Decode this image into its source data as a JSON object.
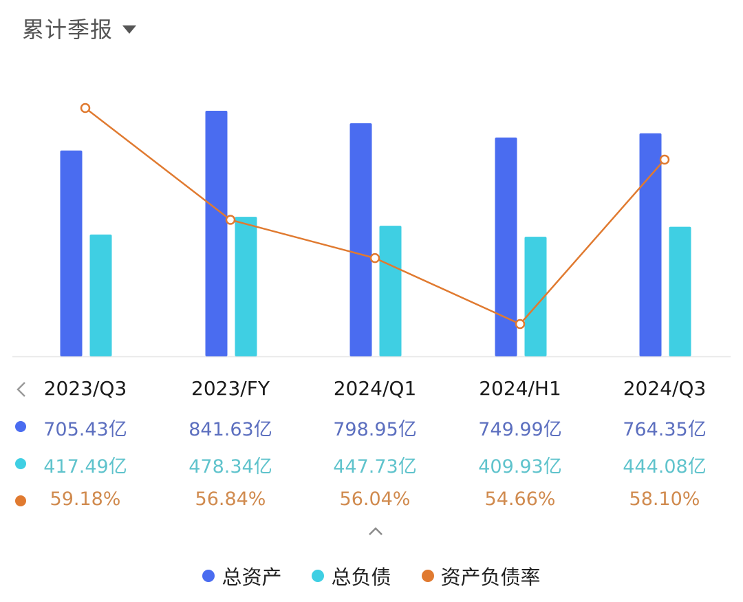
{
  "header": {
    "title": "累计季报",
    "dropdown_icon": "caret-down-icon"
  },
  "colors": {
    "assets": "#4a6cf0",
    "liabilities": "#3fcfe3",
    "ratio": "#e07a30",
    "axis": "#e6e6e6"
  },
  "table": {
    "prev_icon": "chevron-left-icon",
    "categories": [
      "2023/Q3",
      "2023/FY",
      "2024/Q1",
      "2024/H1",
      "2024/Q3"
    ],
    "assets": [
      "705.43亿",
      "841.63亿",
      "798.95亿",
      "749.99亿",
      "764.35亿"
    ],
    "liabilities": [
      "417.49亿",
      "478.34亿",
      "447.73亿",
      "409.93亿",
      "444.08亿"
    ],
    "ratio": [
      "59.18%",
      "56.84%",
      "56.04%",
      "54.66%",
      "58.10%"
    ],
    "collapse_icon": "chevron-up-icon"
  },
  "legend": [
    {
      "label": "总资产",
      "color": "#4a6cf0"
    },
    {
      "label": "总负债",
      "color": "#3fcfe3"
    },
    {
      "label": "资产负债率",
      "color": "#e07a30"
    }
  ],
  "chart_data": {
    "type": "bar",
    "title": "累计季报",
    "categories": [
      "2023/Q3",
      "2023/FY",
      "2024/Q1",
      "2024/H1",
      "2024/Q3"
    ],
    "series": [
      {
        "name": "总资产",
        "type": "bar",
        "unit": "亿",
        "values": [
          705.43,
          841.63,
          798.95,
          749.99,
          764.35
        ]
      },
      {
        "name": "总负债",
        "type": "bar",
        "unit": "亿",
        "values": [
          417.49,
          478.34,
          447.73,
          409.93,
          444.08
        ]
      },
      {
        "name": "资产负债率",
        "type": "line",
        "unit": "%",
        "values": [
          59.18,
          56.84,
          56.04,
          54.66,
          58.1
        ]
      }
    ],
    "xlabel": "",
    "ylabel": "",
    "grid": false,
    "legend_position": "bottom"
  }
}
